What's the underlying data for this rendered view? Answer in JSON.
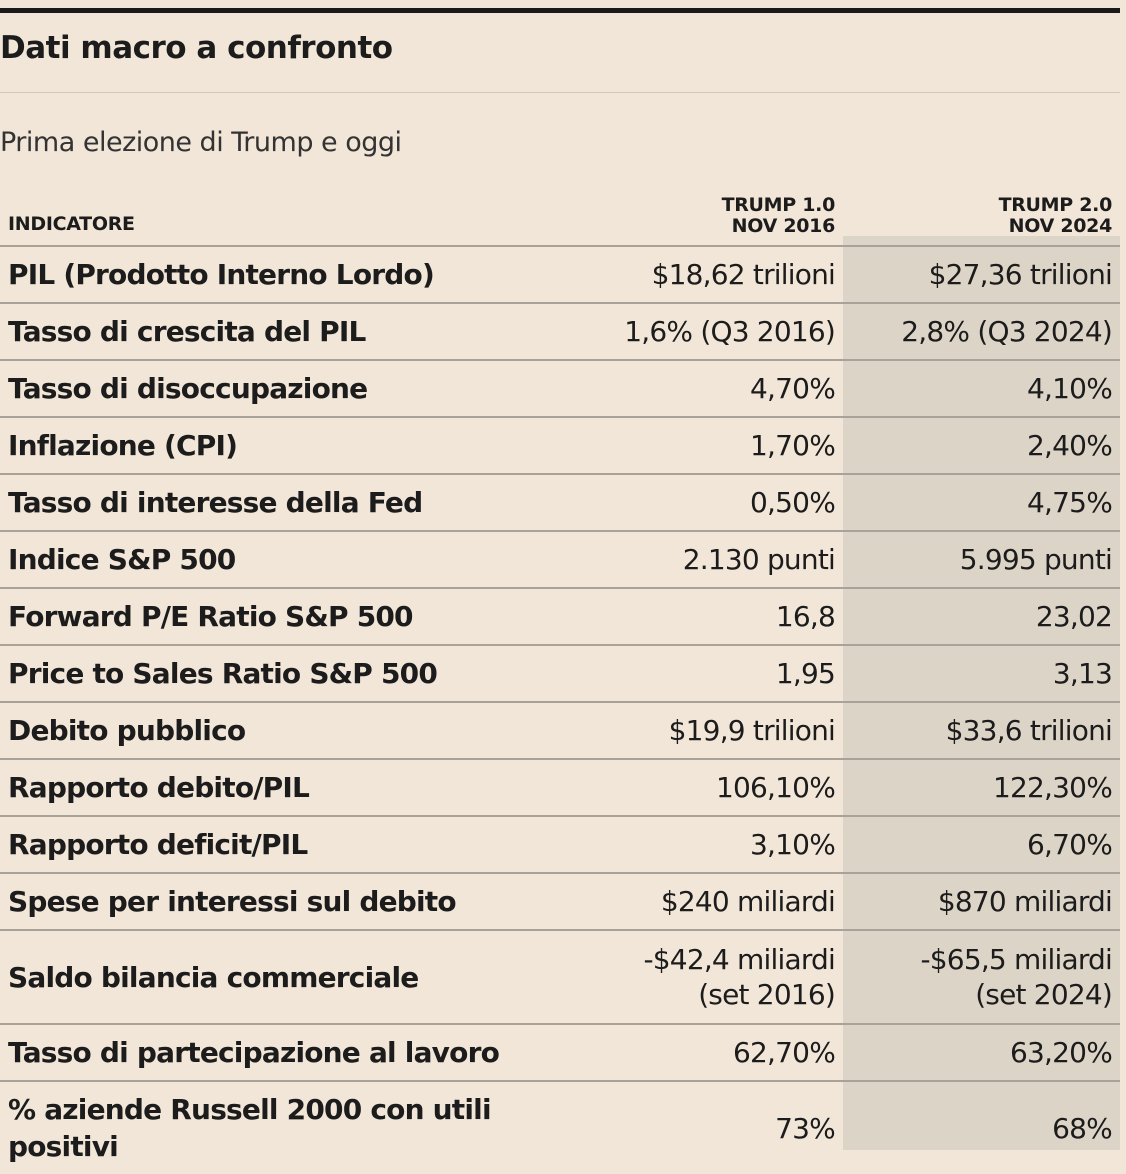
{
  "title": "Dati macro a confronto",
  "subtitle": "Prima elezione di Trump e oggi",
  "chart_data": {
    "type": "table",
    "columns": [
      {
        "label": "INDICATORE"
      },
      {
        "label_line1": "TRUMP 1.0",
        "label_line2": "NOV 2016"
      },
      {
        "label_line1": "TRUMP 2.0",
        "label_line2": "NOV 2024"
      }
    ],
    "rows": [
      {
        "indicator": "PIL (Prodotto Interno Lordo)",
        "trump1": "$18,62 trilioni",
        "trump2": "$27,36 trilioni"
      },
      {
        "indicator": "Tasso di crescita del PIL",
        "trump1": "1,6% (Q3 2016)",
        "trump2": "2,8% (Q3 2024)"
      },
      {
        "indicator": "Tasso di disoccupazione",
        "trump1": "4,70%",
        "trump2": "4,10%"
      },
      {
        "indicator": "Inflazione (CPI)",
        "trump1": "1,70%",
        "trump2": "2,40%"
      },
      {
        "indicator": "Tasso di interesse della Fed",
        "trump1": "0,50%",
        "trump2": "4,75%"
      },
      {
        "indicator": "Indice S&P 500",
        "trump1": "2.130 punti",
        "trump2": "5.995 punti"
      },
      {
        "indicator": "Forward P/E Ratio S&P 500",
        "trump1": "16,8",
        "trump2": "23,02"
      },
      {
        "indicator": "Price to Sales Ratio S&P 500",
        "trump1": "1,95",
        "trump2": "3,13"
      },
      {
        "indicator": "Debito pubblico",
        "trump1": "$19,9 trilioni",
        "trump2": "$33,6 trilioni"
      },
      {
        "indicator": "Rapporto debito/PIL",
        "trump1": "106,10%",
        "trump2": "122,30%"
      },
      {
        "indicator": "Rapporto deficit/PIL",
        "trump1": "3,10%",
        "trump2": "6,70%"
      },
      {
        "indicator": "Spese per interessi sul debito",
        "trump1": "$240 miliardi",
        "trump2": "$870 miliardi"
      },
      {
        "indicator": "Saldo bilancia commerciale",
        "trump1": "-$42,4 miliardi",
        "trump1_note": "(set 2016)",
        "trump2": "-$65,5 miliardi",
        "trump2_note": "(set 2024)"
      },
      {
        "indicator": "Tasso di partecipazione al lavoro",
        "trump1": "62,70%",
        "trump2": "63,20%"
      },
      {
        "indicator": "% aziende Russell 2000 con utili positivi",
        "trump1": "73%",
        "trump2": "68%"
      }
    ]
  },
  "colors": {
    "background": "#f2e6d8",
    "highlight_column": "#ddd4c8",
    "rule": "#1a1a1a"
  }
}
